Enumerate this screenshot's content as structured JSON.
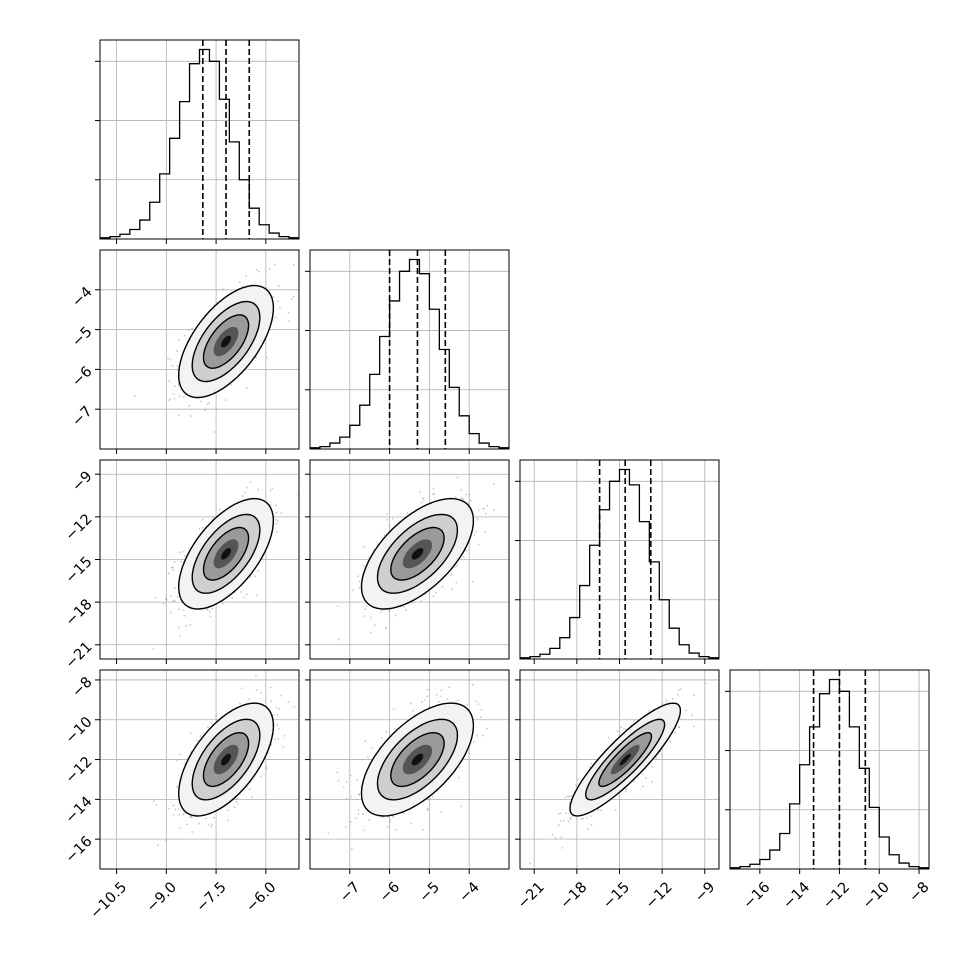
{
  "chart_data": {
    "type": "corner",
    "grid": true,
    "colors": {
      "line": "#000000",
      "scatter": "#9a9a9a",
      "grid": "#b0b0b0",
      "quantile": "#000000"
    },
    "parameters": [
      {
        "range": [
          -11.0,
          -5.0
        ],
        "ticks": [
          -10.5,
          -9.0,
          -7.5,
          -6.0
        ],
        "tick_labels": [
          "−10.5",
          "−9.0",
          "−7.5",
          "−6.0"
        ],
        "mean": -7.2,
        "sd": 0.68,
        "quantiles": [
          -7.9,
          -7.2,
          -6.5
        ]
      },
      {
        "range": [
          -8.0,
          -3.0
        ],
        "ticks": [
          -7,
          -6,
          -5,
          -4
        ],
        "tick_labels": [
          "−7",
          "−6",
          "−5",
          "−4"
        ],
        "mean": -5.3,
        "sd": 0.67,
        "quantiles": [
          -6.0,
          -5.3,
          -4.6
        ]
      },
      {
        "range": [
          -22.0,
          -8.0
        ],
        "ticks": [
          -21,
          -18,
          -15,
          -12,
          -9
        ],
        "tick_labels": [
          "−21",
          "−18",
          "−15",
          "−12",
          "−9"
        ],
        "mean": -14.6,
        "sd": 1.85,
        "quantiles": [
          -16.4,
          -14.6,
          -12.8
        ]
      },
      {
        "range": [
          -17.5,
          -7.5
        ],
        "ticks": [
          -16,
          -14,
          -12,
          -10,
          -8
        ],
        "tick_labels": [
          "−16",
          "−14",
          "−12",
          "−10",
          "−8"
        ],
        "mean": -12.0,
        "sd": 1.35,
        "quantiles": [
          -13.3,
          -12.0,
          -10.7
        ]
      }
    ],
    "correlations": [
      [
        1.0,
        0.6,
        0.6,
        0.6
      ],
      [
        0.6,
        1.0,
        0.6,
        0.6
      ],
      [
        0.6,
        0.6,
        1.0,
        0.87
      ],
      [
        0.6,
        0.6,
        0.87,
        1.0
      ]
    ],
    "histograms": [
      {
        "bin_edges": [
          -11.0,
          -10.7,
          -10.4,
          -10.1,
          -9.8,
          -9.5,
          -9.2,
          -8.9,
          -8.6,
          -8.3,
          -8.0,
          -7.7,
          -7.4,
          -7.1,
          -6.8,
          -6.5,
          -6.2,
          -5.9,
          -5.6,
          -5.3,
          -5.0
        ],
        "counts": [
          1,
          2,
          4,
          8,
          16,
          31,
          55,
          85,
          116,
          148,
          160,
          150,
          118,
          82,
          50,
          26,
          12,
          5,
          2,
          1
        ]
      },
      {
        "bin_edges": [
          -8.0,
          -7.75,
          -7.5,
          -7.25,
          -7.0,
          -6.75,
          -6.5,
          -6.25,
          -6.0,
          -5.75,
          -5.5,
          -5.25,
          -5.0,
          -4.75,
          -4.5,
          -4.25,
          -4.0,
          -3.75,
          -3.5,
          -3.25,
          -3.0
        ],
        "counts": [
          1,
          2,
          5,
          10,
          20,
          37,
          63,
          95,
          125,
          150,
          160,
          148,
          118,
          84,
          52,
          28,
          13,
          5,
          2,
          1
        ]
      },
      {
        "bin_edges": [
          -22.0,
          -21.3,
          -20.6,
          -19.9,
          -19.2,
          -18.5,
          -17.8,
          -17.1,
          -16.4,
          -15.7,
          -15.0,
          -14.3,
          -13.6,
          -12.9,
          -12.2,
          -11.5,
          -10.8,
          -10.1,
          -9.4,
          -8.7,
          -8.0
        ],
        "counts": [
          1,
          2,
          4,
          9,
          18,
          35,
          62,
          96,
          126,
          150,
          160,
          147,
          116,
          82,
          50,
          26,
          12,
          5,
          2,
          1
        ]
      },
      {
        "bin_edges": [
          -17.5,
          -17.0,
          -16.5,
          -16.0,
          -15.5,
          -15.0,
          -14.5,
          -14.0,
          -13.5,
          -13.0,
          -12.5,
          -12.0,
          -11.5,
          -11.0,
          -10.5,
          -10.0,
          -9.5,
          -9.0,
          -8.5,
          -8.0,
          -7.5
        ],
        "counts": [
          1,
          2,
          4,
          8,
          16,
          30,
          55,
          88,
          120,
          148,
          160,
          150,
          120,
          85,
          52,
          27,
          12,
          5,
          2,
          1
        ]
      }
    ]
  }
}
